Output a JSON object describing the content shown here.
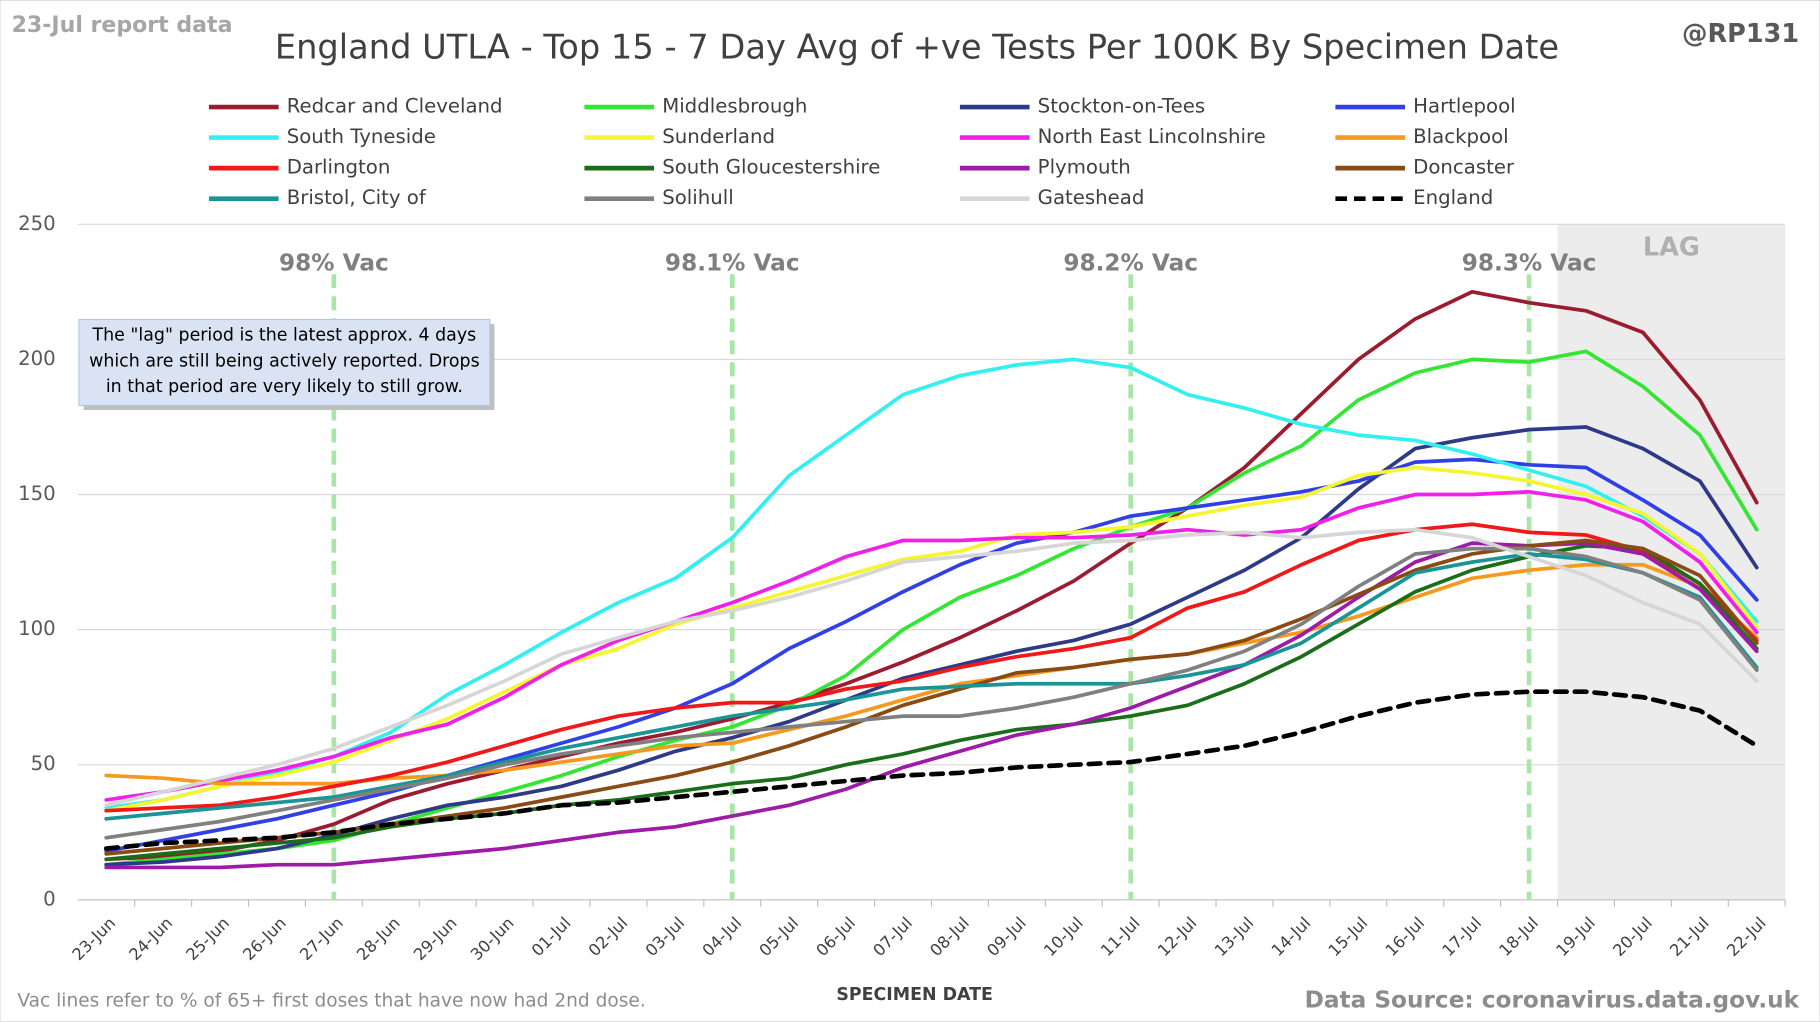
{
  "chart_data": {
    "type": "line",
    "title": "England UTLA - Top 15 - 7 Day Avg of +ve Tests Per 100K By Specimen Date",
    "report_note": "23-Jul report data",
    "author": "@RP131",
    "annotation": [
      "The \"lag\" period is the latest approx. 4 days",
      "which are still being actively reported. Drops",
      "in that period are very likely to still grow."
    ],
    "footnote": "Vac lines refer to % of 65+ first doses that have now had 2nd dose.",
    "x_label": "SPECIMEN DATE",
    "source": "Data Source: coronavirus.data.gov.uk",
    "lag_label": "LAG",
    "vac_lines": [
      {
        "x": "27-Jun",
        "label": "98% Vac"
      },
      {
        "x": "04-Jul",
        "label": "98.1% Vac"
      },
      {
        "x": "11-Jul",
        "label": "98.2% Vac"
      },
      {
        "x": "18-Jul",
        "label": "98.3% Vac"
      }
    ],
    "categories": [
      "23-Jun",
      "24-Jun",
      "25-Jun",
      "26-Jun",
      "27-Jun",
      "28-Jun",
      "29-Jun",
      "30-Jun",
      "01-Jul",
      "02-Jul",
      "03-Jul",
      "04-Jul",
      "05-Jul",
      "06-Jul",
      "07-Jul",
      "08-Jul",
      "09-Jul",
      "10-Jul",
      "11-Jul",
      "12-Jul",
      "13-Jul",
      "14-Jul",
      "15-Jul",
      "16-Jul",
      "17-Jul",
      "18-Jul",
      "19-Jul",
      "20-Jul",
      "21-Jul",
      "22-Jul"
    ],
    "ylim": [
      0,
      250
    ],
    "yticks": [
      0,
      50,
      100,
      150,
      200,
      250
    ],
    "grid": true,
    "series": [
      {
        "name": "Redcar and Cleveland",
        "color": "#9b1b30",
        "values": [
          15,
          16,
          18,
          22,
          28,
          37,
          43,
          48,
          53,
          58,
          62,
          67,
          73,
          80,
          88,
          97,
          107,
          118,
          132,
          145,
          160,
          180,
          200,
          215,
          225,
          221,
          218,
          210,
          185,
          147
        ]
      },
      {
        "name": "Middlesbrough",
        "color": "#33e633",
        "values": [
          13,
          15,
          17,
          19,
          22,
          28,
          34,
          40,
          46,
          53,
          59,
          64,
          72,
          83,
          100,
          112,
          120,
          130,
          138,
          145,
          158,
          168,
          185,
          195,
          200,
          199,
          203,
          190,
          172,
          137
        ]
      },
      {
        "name": "Stockton-on-Tees",
        "color": "#2e3a87",
        "values": [
          13,
          14,
          16,
          19,
          24,
          30,
          35,
          38,
          42,
          48,
          55,
          60,
          66,
          74,
          82,
          87,
          92,
          96,
          102,
          112,
          122,
          134,
          152,
          167,
          171,
          174,
          175,
          167,
          155,
          123
        ]
      },
      {
        "name": "Hartlepool",
        "color": "#3040e6",
        "values": [
          18,
          22,
          26,
          30,
          35,
          40,
          46,
          52,
          58,
          64,
          71,
          80,
          93,
          103,
          114,
          124,
          132,
          136,
          142,
          145,
          148,
          151,
          155,
          162,
          163,
          161,
          160,
          148,
          135,
          111
        ]
      },
      {
        "name": "South Tyneside",
        "color": "#33f0f0",
        "values": [
          34,
          37,
          42,
          47,
          53,
          62,
          76,
          87,
          99,
          110,
          119,
          134,
          157,
          172,
          187,
          194,
          198,
          200,
          197,
          187,
          182,
          176,
          172,
          170,
          165,
          159,
          153,
          142,
          128,
          103
        ]
      },
      {
        "name": "Sunderland",
        "color": "#f5f531",
        "values": [
          33,
          37,
          42,
          46,
          51,
          59,
          67,
          77,
          87,
          93,
          102,
          108,
          114,
          120,
          126,
          129,
          135,
          136,
          138,
          142,
          146,
          149,
          157,
          160,
          158,
          155,
          150,
          143,
          128,
          101
        ]
      },
      {
        "name": "North East Lincolnshire",
        "color": "#f020e8",
        "values": [
          37,
          40,
          44,
          48,
          53,
          60,
          65,
          75,
          87,
          96,
          103,
          110,
          118,
          127,
          133,
          133,
          134,
          134,
          135,
          137,
          135,
          137,
          145,
          150,
          150,
          151,
          148,
          140,
          125,
          99
        ]
      },
      {
        "name": "Blackpool",
        "color": "#f59a1e",
        "values": [
          46,
          45,
          43,
          43,
          43,
          45,
          46,
          48,
          51,
          54,
          57,
          58,
          63,
          68,
          74,
          80,
          83,
          86,
          89,
          91,
          95,
          99,
          105,
          112,
          119,
          122,
          124,
          124,
          116,
          97
        ]
      },
      {
        "name": "Darlington",
        "color": "#f01818",
        "values": [
          33,
          34,
          35,
          38,
          42,
          46,
          51,
          57,
          63,
          68,
          71,
          73,
          73,
          78,
          81,
          86,
          90,
          93,
          97,
          108,
          114,
          124,
          133,
          137,
          139,
          136,
          135,
          129,
          117,
          96
        ]
      },
      {
        "name": "South Gloucestershire",
        "color": "#1a6e1a",
        "values": [
          15,
          17,
          19,
          21,
          23,
          27,
          30,
          32,
          35,
          37,
          40,
          43,
          45,
          50,
          54,
          59,
          63,
          65,
          68,
          72,
          80,
          90,
          102,
          114,
          122,
          127,
          131,
          130,
          117,
          93
        ]
      },
      {
        "name": "Plymouth",
        "color": "#9e1aa8",
        "values": [
          12,
          12,
          12,
          13,
          13,
          15,
          17,
          19,
          22,
          25,
          27,
          31,
          35,
          41,
          49,
          55,
          61,
          65,
          71,
          79,
          87,
          98,
          112,
          125,
          132,
          131,
          132,
          128,
          115,
          92
        ]
      },
      {
        "name": "Doncaster",
        "color": "#8a4a14",
        "values": [
          17,
          19,
          21,
          23,
          25,
          28,
          31,
          34,
          38,
          42,
          46,
          51,
          57,
          64,
          72,
          78,
          84,
          86,
          89,
          91,
          96,
          104,
          113,
          122,
          128,
          131,
          133,
          130,
          120,
          95
        ]
      },
      {
        "name": "Bristol, City of",
        "color": "#1a9494",
        "values": [
          30,
          32,
          34,
          36,
          38,
          42,
          46,
          51,
          56,
          60,
          64,
          68,
          71,
          74,
          78,
          79,
          80,
          80,
          80,
          83,
          87,
          95,
          108,
          121,
          125,
          128,
          126,
          121,
          112,
          86
        ]
      },
      {
        "name": "Solihull",
        "color": "#808080",
        "values": [
          23,
          26,
          29,
          33,
          37,
          41,
          45,
          50,
          54,
          57,
          60,
          62,
          64,
          66,
          68,
          68,
          71,
          75,
          80,
          85,
          92,
          102,
          116,
          128,
          130,
          130,
          127,
          121,
          111,
          85
        ]
      },
      {
        "name": "Gateshead",
        "color": "#d6d6d6",
        "values": [
          35,
          40,
          45,
          50,
          56,
          64,
          72,
          81,
          91,
          97,
          103,
          107,
          112,
          118,
          125,
          127,
          129,
          132,
          133,
          135,
          136,
          134,
          136,
          137,
          134,
          127,
          120,
          110,
          102,
          81
        ]
      },
      {
        "name": "England",
        "color": "#000000",
        "dashed": true,
        "values": [
          19,
          21,
          22,
          23,
          25,
          28,
          30,
          32,
          35,
          36,
          38,
          40,
          42,
          44,
          46,
          47,
          49,
          50,
          51,
          54,
          57,
          62,
          68,
          73,
          76,
          77,
          77,
          75,
          70,
          57
        ]
      }
    ]
  }
}
